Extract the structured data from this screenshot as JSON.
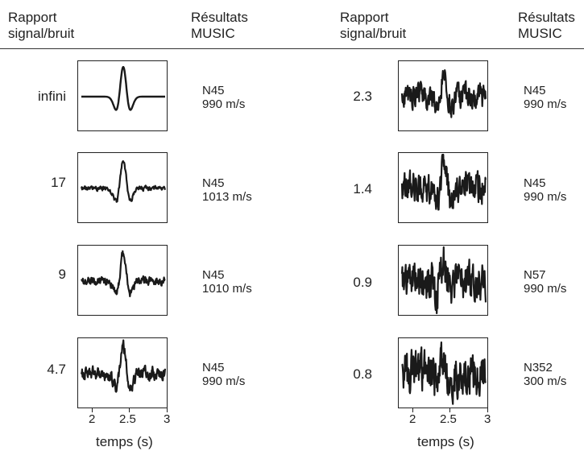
{
  "headers": {
    "left_snr": "Rapport\nsignal/bruit",
    "left_music": "Résultats\nMUSIC",
    "right_snr": "Rapport\nsignal/bruit",
    "right_music": "Résultats\nMUSIC"
  },
  "left_rows": [
    {
      "snr": "infini",
      "mode": "N45",
      "speed": "990 m/s",
      "noise": 0
    },
    {
      "snr": "17",
      "mode": "N45",
      "speed": "1013 m/s",
      "noise": 0.1
    },
    {
      "snr": "9",
      "mode": "N45",
      "speed": "1010 m/s",
      "noise": 0.18
    },
    {
      "snr": "4.7",
      "mode": "N45",
      "speed": "990 m/s",
      "noise": 0.3
    }
  ],
  "right_rows": [
    {
      "snr": "2.3",
      "mode": "N45",
      "speed": "990 m/s",
      "noise": 0.55
    },
    {
      "snr": "1.4",
      "mode": "N45",
      "speed": "990 m/s",
      "noise": 0.7
    },
    {
      "snr": "0.9",
      "mode": "N57",
      "speed": "990 m/s",
      "noise": 0.85
    },
    {
      "snr": "0.8",
      "mode": "N352",
      "speed": "300 m/s",
      "noise": 0.95
    }
  ],
  "x_axis": {
    "ticks": [
      "2",
      "2.5",
      "3"
    ],
    "label": "temps (s)",
    "range": [
      1.8,
      3.0
    ]
  }
}
